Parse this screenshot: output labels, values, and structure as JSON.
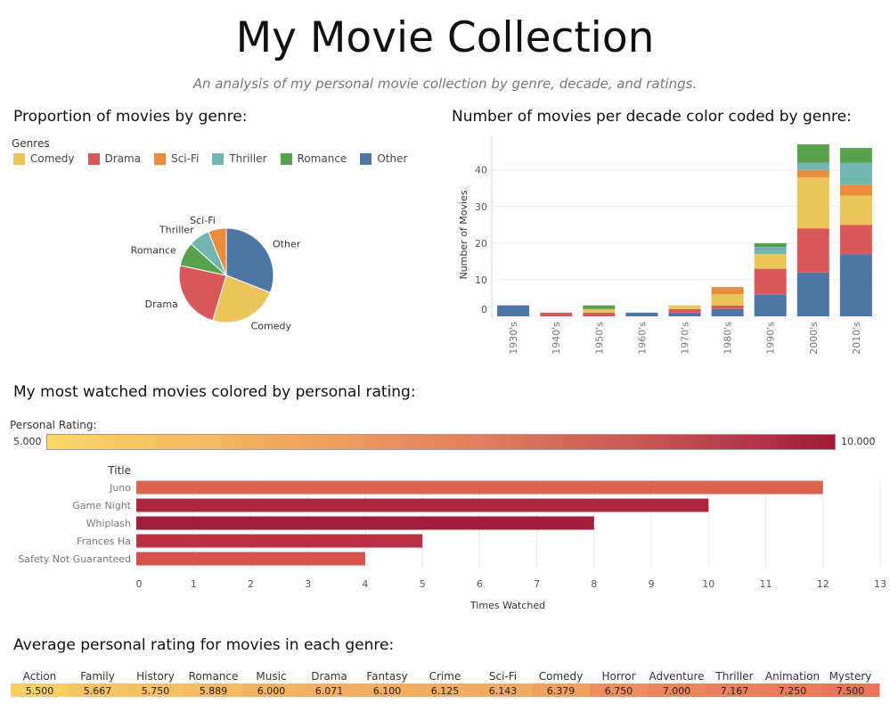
{
  "header": {
    "title": "My Movie Collection",
    "subtitle": "An analysis of my personal movie collection by genre, decade, and ratings."
  },
  "colors": {
    "Comedy": "#ebc45c",
    "Drama": "#d7585a",
    "Sci-Fi": "#e88c3e",
    "Thriller": "#72b6b3",
    "Romance": "#58a24f",
    "Other": "#4e75a4"
  },
  "sections": {
    "pie_title": "Proportion of movies by genre:",
    "stack_title": "Number of movies per decade color coded by genre:",
    "bar_title": "My most watched movies colored by personal rating:",
    "heat_title": "Average personal rating for movies in each genre:"
  },
  "legend": {
    "title": "Genres",
    "items": [
      "Comedy",
      "Drama",
      "Sci-Fi",
      "Thriller",
      "Romance",
      "Other"
    ]
  },
  "rating_scale": {
    "label": "Personal Rating:",
    "min": "5.000",
    "max": "10.000"
  },
  "chart_data": [
    {
      "type": "pie",
      "title": "Proportion of movies by genre:",
      "slices": [
        {
          "label": "Other",
          "value": 30
        },
        {
          "label": "Comedy",
          "value": 23
        },
        {
          "label": "Drama",
          "value": 23
        },
        {
          "label": "Romance",
          "value": 8
        },
        {
          "label": "Thriller",
          "value": 7
        },
        {
          "label": "Sci-Fi",
          "value": 6
        }
      ]
    },
    {
      "type": "bar",
      "stacked": true,
      "title": "Number of movies per decade color coded by genre:",
      "ylabel": "Number of Movies",
      "ylim": [
        0,
        47
      ],
      "yticks": [
        0,
        10,
        20,
        30,
        40
      ],
      "categories": [
        "1930's",
        "1940's",
        "1950's",
        "1960's",
        "1970's",
        "1980's",
        "1990's",
        "2000's",
        "2010's"
      ],
      "series": [
        {
          "name": "Other",
          "values": [
            3,
            0,
            0,
            1,
            1,
            2,
            6,
            12,
            17
          ]
        },
        {
          "name": "Drama",
          "values": [
            0,
            1,
            1,
            0,
            1,
            1,
            7,
            12,
            8
          ]
        },
        {
          "name": "Comedy",
          "values": [
            0,
            0,
            1,
            0,
            1,
            3,
            4,
            14,
            8
          ]
        },
        {
          "name": "Sci-Fi",
          "values": [
            0,
            0,
            0,
            0,
            0,
            2,
            0,
            2,
            3
          ]
        },
        {
          "name": "Thriller",
          "values": [
            0,
            0,
            0,
            0,
            0,
            0,
            2,
            2,
            6
          ]
        },
        {
          "name": "Romance",
          "values": [
            0,
            0,
            1,
            0,
            0,
            0,
            1,
            5,
            4
          ]
        }
      ]
    },
    {
      "type": "bar",
      "orientation": "horizontal",
      "title": "My most watched movies colored by personal rating:",
      "ylabel": "Title",
      "xlabel": "Times Watched",
      "xlim": [
        0,
        13
      ],
      "xticks": [
        0,
        1,
        2,
        3,
        4,
        5,
        6,
        7,
        8,
        9,
        10,
        11,
        12,
        13
      ],
      "categories": [
        "Juno",
        "Game Night",
        "Whiplash",
        "Frances Ha",
        "Safety Not Guaranteed"
      ],
      "values": [
        12,
        10,
        8,
        5,
        4
      ],
      "colors": [
        "#dd6351",
        "#ab283c",
        "#a11c38",
        "#b73043",
        "#d45249"
      ]
    },
    {
      "type": "heatmap",
      "title": "Average personal rating for movies in each genre:",
      "categories": [
        "Action",
        "Family",
        "History",
        "Romance",
        "Music",
        "Drama",
        "Fantasy",
        "Crime",
        "Sci-Fi",
        "Comedy",
        "Horror",
        "Adventure",
        "Thriller",
        "Animation",
        "Mystery"
      ],
      "labels": [
        "5.500",
        "5.667",
        "5.750",
        "5.889",
        "6.000",
        "6.071",
        "6.100",
        "6.125",
        "6.143",
        "6.379",
        "6.750",
        "7.000",
        "7.167",
        "7.250",
        "7.500"
      ],
      "colors": [
        "#f7ce62",
        "#f6c462",
        "#f6c063",
        "#f4b962",
        "#f3b462",
        "#f3b062",
        "#f3ae62",
        "#f2ad62",
        "#f2ac62",
        "#f1a061",
        "#ee8d5f",
        "#ec855e",
        "#eb805e",
        "#ea7c5d",
        "#e9755c"
      ]
    }
  ]
}
